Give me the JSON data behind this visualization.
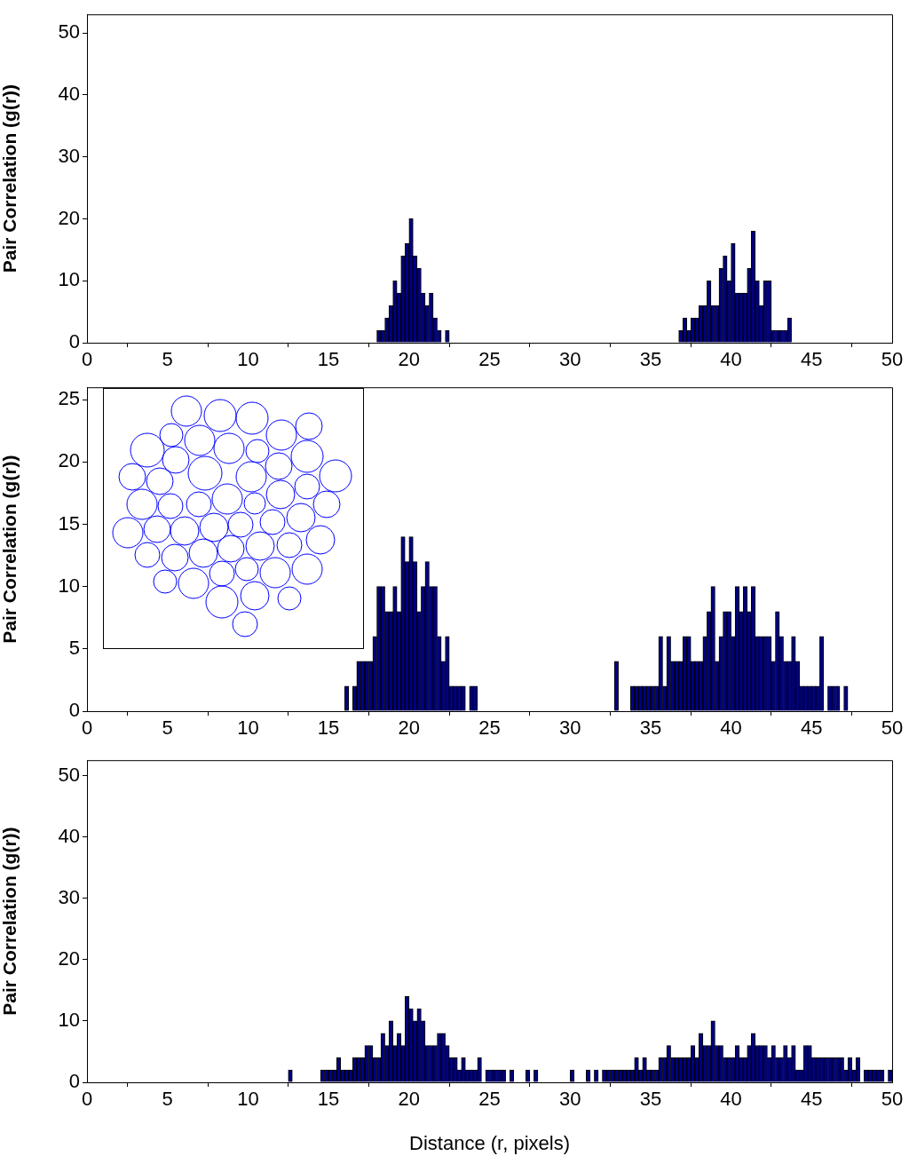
{
  "chart_data": [
    {
      "type": "histogram",
      "ylabel": "Pair Correlation (g(r))",
      "color": "#000080",
      "bins": [
        18,
        18.25,
        18.5,
        18.75,
        19,
        19.25,
        19.5,
        19.75,
        20,
        20.25,
        20.5,
        20.75,
        21,
        21.25,
        21.5,
        21.75,
        22,
        22.25,
        22.5,
        36.75,
        37,
        37.25,
        37.5,
        37.75,
        38,
        38.25,
        38.5,
        38.75,
        39,
        39.25,
        39.5,
        39.75,
        40,
        40.25,
        40.5,
        40.75,
        41,
        41.25,
        41.5,
        41.75,
        42,
        42.25,
        42.5,
        42.75,
        43,
        43.25,
        43.5,
        43.75
      ],
      "values": [
        2,
        2,
        4,
        6,
        10,
        8,
        14,
        16,
        20,
        14,
        12,
        8,
        6,
        8,
        4,
        2,
        0,
        2,
        0,
        2,
        4,
        2,
        4,
        4,
        6,
        6,
        10,
        6,
        6,
        12,
        14,
        10,
        16,
        8,
        8,
        8,
        12,
        18,
        10,
        6,
        10,
        10,
        2,
        2,
        2,
        2,
        4
      ],
      "xlim": [
        0,
        50
      ],
      "xticks": [
        0,
        5,
        10,
        15,
        20,
        25,
        30,
        35,
        40,
        45,
        50
      ],
      "ylim": [
        0,
        53
      ],
      "yticks": [
        0,
        10,
        20,
        30,
        40,
        50
      ]
    },
    {
      "type": "histogram",
      "ylabel": "Pair Correlation (g(r))",
      "color": "#000080",
      "bins": [
        16,
        16.25,
        16.5,
        16.75,
        17,
        17.25,
        17.5,
        17.75,
        18,
        18.25,
        18.5,
        18.75,
        19,
        19.25,
        19.5,
        19.75,
        20,
        20.25,
        20.5,
        20.75,
        21,
        21.25,
        21.5,
        21.75,
        22,
        22.25,
        22.5,
        22.75,
        23,
        23.25,
        23.5,
        23.75,
        24,
        24.25,
        32.75,
        33,
        33.25,
        33.5,
        33.75,
        34,
        34.25,
        34.5,
        34.75,
        35,
        35.25,
        35.5,
        35.75,
        36,
        36.25,
        36.5,
        36.75,
        37,
        37.25,
        37.5,
        37.75,
        38,
        38.25,
        38.5,
        38.75,
        39,
        39.25,
        39.5,
        39.75,
        40,
        40.25,
        40.5,
        40.75,
        41,
        41.25,
        41.5,
        41.75,
        42,
        42.25,
        42.5,
        42.75,
        43,
        43.25,
        43.5,
        43.75,
        44,
        44.25,
        44.5,
        44.75,
        45,
        45.25,
        45.5,
        45.75,
        46,
        46.25,
        46.5,
        46.75,
        47,
        47.25
      ],
      "values": [
        2,
        0,
        2,
        4,
        4,
        4,
        4,
        6,
        10,
        10,
        8,
        8,
        10,
        8,
        14,
        12,
        14,
        12,
        8,
        10,
        12,
        10,
        10,
        6,
        4,
        6,
        2,
        2,
        2,
        2,
        0,
        2,
        2,
        0,
        4,
        0,
        0,
        0,
        2,
        2,
        2,
        2,
        2,
        2,
        2,
        6,
        2,
        6,
        4,
        4,
        4,
        6,
        6,
        4,
        4,
        4,
        6,
        8,
        10,
        4,
        6,
        8,
        8,
        6,
        10,
        8,
        10,
        8,
        10,
        6,
        6,
        6,
        6,
        4,
        8,
        6,
        4,
        4,
        6,
        4,
        2,
        2,
        2,
        2,
        2,
        6,
        0,
        2,
        2,
        2,
        0,
        2
      ],
      "xlim": [
        0,
        50
      ],
      "xticks": [
        0,
        5,
        10,
        15,
        20,
        25,
        30,
        35,
        40,
        45,
        50
      ],
      "ylim": [
        0,
        26
      ],
      "yticks": [
        0,
        5,
        10,
        15,
        20,
        25
      ]
    },
    {
      "type": "histogram",
      "ylabel": "Pair Correlation (g(r))",
      "xlabel": "Distance (r, pixels)",
      "color": "#000080",
      "bins": [
        12.5,
        12.75,
        14.5,
        14.75,
        15,
        15.25,
        15.5,
        15.75,
        16,
        16.25,
        16.5,
        16.75,
        17,
        17.25,
        17.5,
        17.75,
        18,
        18.25,
        18.5,
        18.75,
        19,
        19.25,
        19.5,
        19.75,
        20,
        20.25,
        20.5,
        20.75,
        21,
        21.25,
        21.5,
        21.75,
        22,
        22.25,
        22.5,
        22.75,
        23,
        23.25,
        23.5,
        23.75,
        24,
        24.25,
        24.5,
        24.75,
        25,
        25.25,
        25.5,
        25.75,
        26,
        26.25,
        26.5,
        26.75,
        27,
        27.25,
        27.5,
        27.75,
        28,
        30,
        30.25,
        30.5,
        30.75,
        31,
        31.25,
        31.5,
        31.75,
        32,
        32.25,
        32.5,
        32.75,
        33,
        33.25,
        33.5,
        33.75,
        34,
        34.25,
        34.5,
        34.75,
        35,
        35.25,
        35.5,
        35.75,
        36,
        36.25,
        36.5,
        36.75,
        37,
        37.25,
        37.5,
        37.75,
        38,
        38.25,
        38.5,
        38.75,
        39,
        39.25,
        39.5,
        39.75,
        40,
        40.25,
        40.5,
        40.75,
        41,
        41.25,
        41.5,
        41.75,
        42,
        42.25,
        42.5,
        42.75,
        43,
        43.25,
        43.5,
        43.75,
        44,
        44.25,
        44.5,
        44.75,
        45,
        45.25,
        45.5,
        45.75,
        46,
        46.25,
        46.5,
        46.75,
        47,
        47.25,
        47.5,
        47.75,
        48,
        48.25,
        48.5,
        48.75,
        49,
        49.25,
        49.5,
        49.75,
        50
      ],
      "values": [
        2,
        0,
        2,
        2,
        2,
        2,
        4,
        2,
        2,
        2,
        4,
        4,
        4,
        6,
        6,
        4,
        4,
        8,
        6,
        10,
        6,
        8,
        6,
        14,
        12,
        10,
        12,
        10,
        6,
        6,
        6,
        8,
        8,
        6,
        4,
        4,
        2,
        4,
        2,
        2,
        2,
        4,
        0,
        2,
        2,
        2,
        2,
        2,
        0,
        2,
        0,
        0,
        0,
        2,
        0,
        2,
        0,
        2,
        0,
        0,
        0,
        2,
        0,
        2,
        0,
        2,
        2,
        2,
        2,
        2,
        2,
        2,
        2,
        4,
        2,
        4,
        2,
        2,
        2,
        4,
        4,
        6,
        4,
        4,
        4,
        4,
        4,
        6,
        4,
        8,
        6,
        6,
        10,
        6,
        6,
        4,
        4,
        4,
        6,
        4,
        4,
        6,
        8,
        6,
        6,
        6,
        4,
        6,
        4,
        4,
        6,
        4,
        6,
        2,
        2,
        6,
        6,
        4,
        4,
        4,
        4,
        4,
        4,
        4,
        4,
        2,
        4,
        2,
        4,
        0,
        2,
        2,
        2,
        2,
        2,
        0,
        2
      ],
      "xlim": [
        0,
        50
      ],
      "xticks": [
        0,
        5,
        10,
        15,
        20,
        25,
        30,
        35,
        40,
        45,
        50
      ],
      "ylim": [
        0,
        52.5
      ],
      "yticks": [
        0,
        10,
        20,
        30,
        40,
        50
      ]
    }
  ]
}
